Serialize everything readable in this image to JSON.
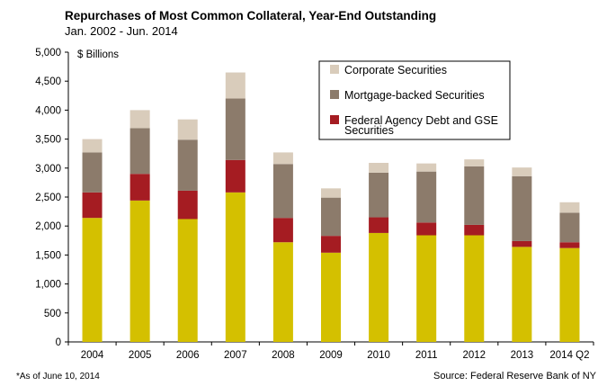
{
  "chart_data": {
    "type": "bar",
    "stacked": true,
    "title": "Repurchases of Most Common  Collateral, Year-End Outstanding",
    "subtitle": "Jan. 2002 - Jun. 2014",
    "unit_label": "$ Billions",
    "categories": [
      "2004",
      "2005",
      "2006",
      "2007",
      "2008",
      "2009",
      "2010",
      "2011",
      "2012",
      "2013",
      "2014 Q2"
    ],
    "series": [
      {
        "key": "treasury",
        "name": "",
        "color": "#d4c000",
        "values": [
          2140,
          2440,
          2120,
          2580,
          1720,
          1540,
          1880,
          1840,
          1840,
          1640,
          1620
        ]
      },
      {
        "key": "agency",
        "name": "Federal Agency Debt and GSE Securities",
        "color": "#a51c22",
        "values": [
          440,
          460,
          490,
          560,
          420,
          290,
          270,
          220,
          180,
          100,
          100
        ]
      },
      {
        "key": "mbs",
        "name": "Mortgage-backed Securities",
        "color": "#8c7b6b",
        "values": [
          690,
          790,
          880,
          1060,
          930,
          660,
          770,
          880,
          1010,
          1120,
          510
        ]
      },
      {
        "key": "corp",
        "name": "Corporate Securities",
        "color": "#d9ccbb",
        "values": [
          230,
          310,
          350,
          450,
          200,
          160,
          170,
          140,
          120,
          150,
          180
        ]
      }
    ],
    "legend_order": [
      "corp",
      "mbs",
      "agency"
    ],
    "ylim": [
      0,
      5000
    ],
    "yticks": [
      0,
      500,
      1000,
      1500,
      2000,
      2500,
      3000,
      3500,
      4000,
      4500,
      5000
    ],
    "ytick_labels": [
      "0",
      "500",
      "1,000",
      "1,500",
      "2,000",
      "2,500",
      "3,000",
      "3,500",
      "4,000",
      "4,500",
      "5,000"
    ],
    "grid": false,
    "legend_position": "top-right"
  },
  "footnote": "*As of June 10, 2014",
  "source": "Source: Federal Reserve Bank of NY"
}
